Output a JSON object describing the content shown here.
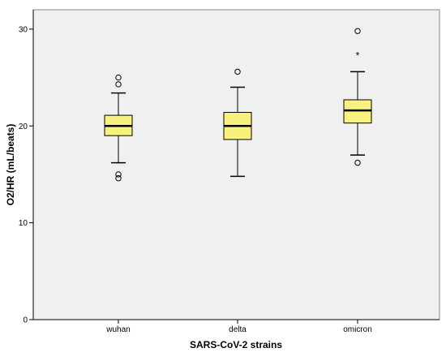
{
  "chart_data": {
    "type": "boxplot",
    "title": "",
    "xlabel": "SARS-CoV-2 strains",
    "ylabel": "O2/HR (mL/beats)",
    "categories": [
      "wuhan",
      "delta",
      "omicron"
    ],
    "ylim": [
      0,
      32
    ],
    "yticks": [
      0,
      10,
      20,
      30
    ],
    "grid": false,
    "colors": {
      "plot_bg": "#f0f0f0",
      "box_fill": "#f7f17d",
      "axis": "#000000",
      "frame": "#888888"
    },
    "boxes": [
      {
        "category": "wuhan",
        "whisker_low": 16.2,
        "q1": 19.0,
        "median": 20.0,
        "q3": 21.1,
        "whisker_high": 23.4,
        "outliers": [
          {
            "value": 25.0,
            "marker": "circle"
          },
          {
            "value": 24.3,
            "marker": "circle"
          },
          {
            "value": 15.0,
            "marker": "circle"
          },
          {
            "value": 14.6,
            "marker": "circle"
          }
        ]
      },
      {
        "category": "delta",
        "whisker_low": 14.8,
        "q1": 18.6,
        "median": 20.0,
        "q3": 21.4,
        "whisker_high": 24.0,
        "outliers": [
          {
            "value": 25.6,
            "marker": "circle"
          }
        ]
      },
      {
        "category": "omicron",
        "whisker_low": 17.0,
        "q1": 20.3,
        "median": 21.6,
        "q3": 22.7,
        "whisker_high": 25.6,
        "outliers": [
          {
            "value": 29.8,
            "marker": "circle"
          },
          {
            "value": 27.5,
            "marker": "star"
          },
          {
            "value": 16.2,
            "marker": "circle"
          }
        ]
      }
    ]
  }
}
